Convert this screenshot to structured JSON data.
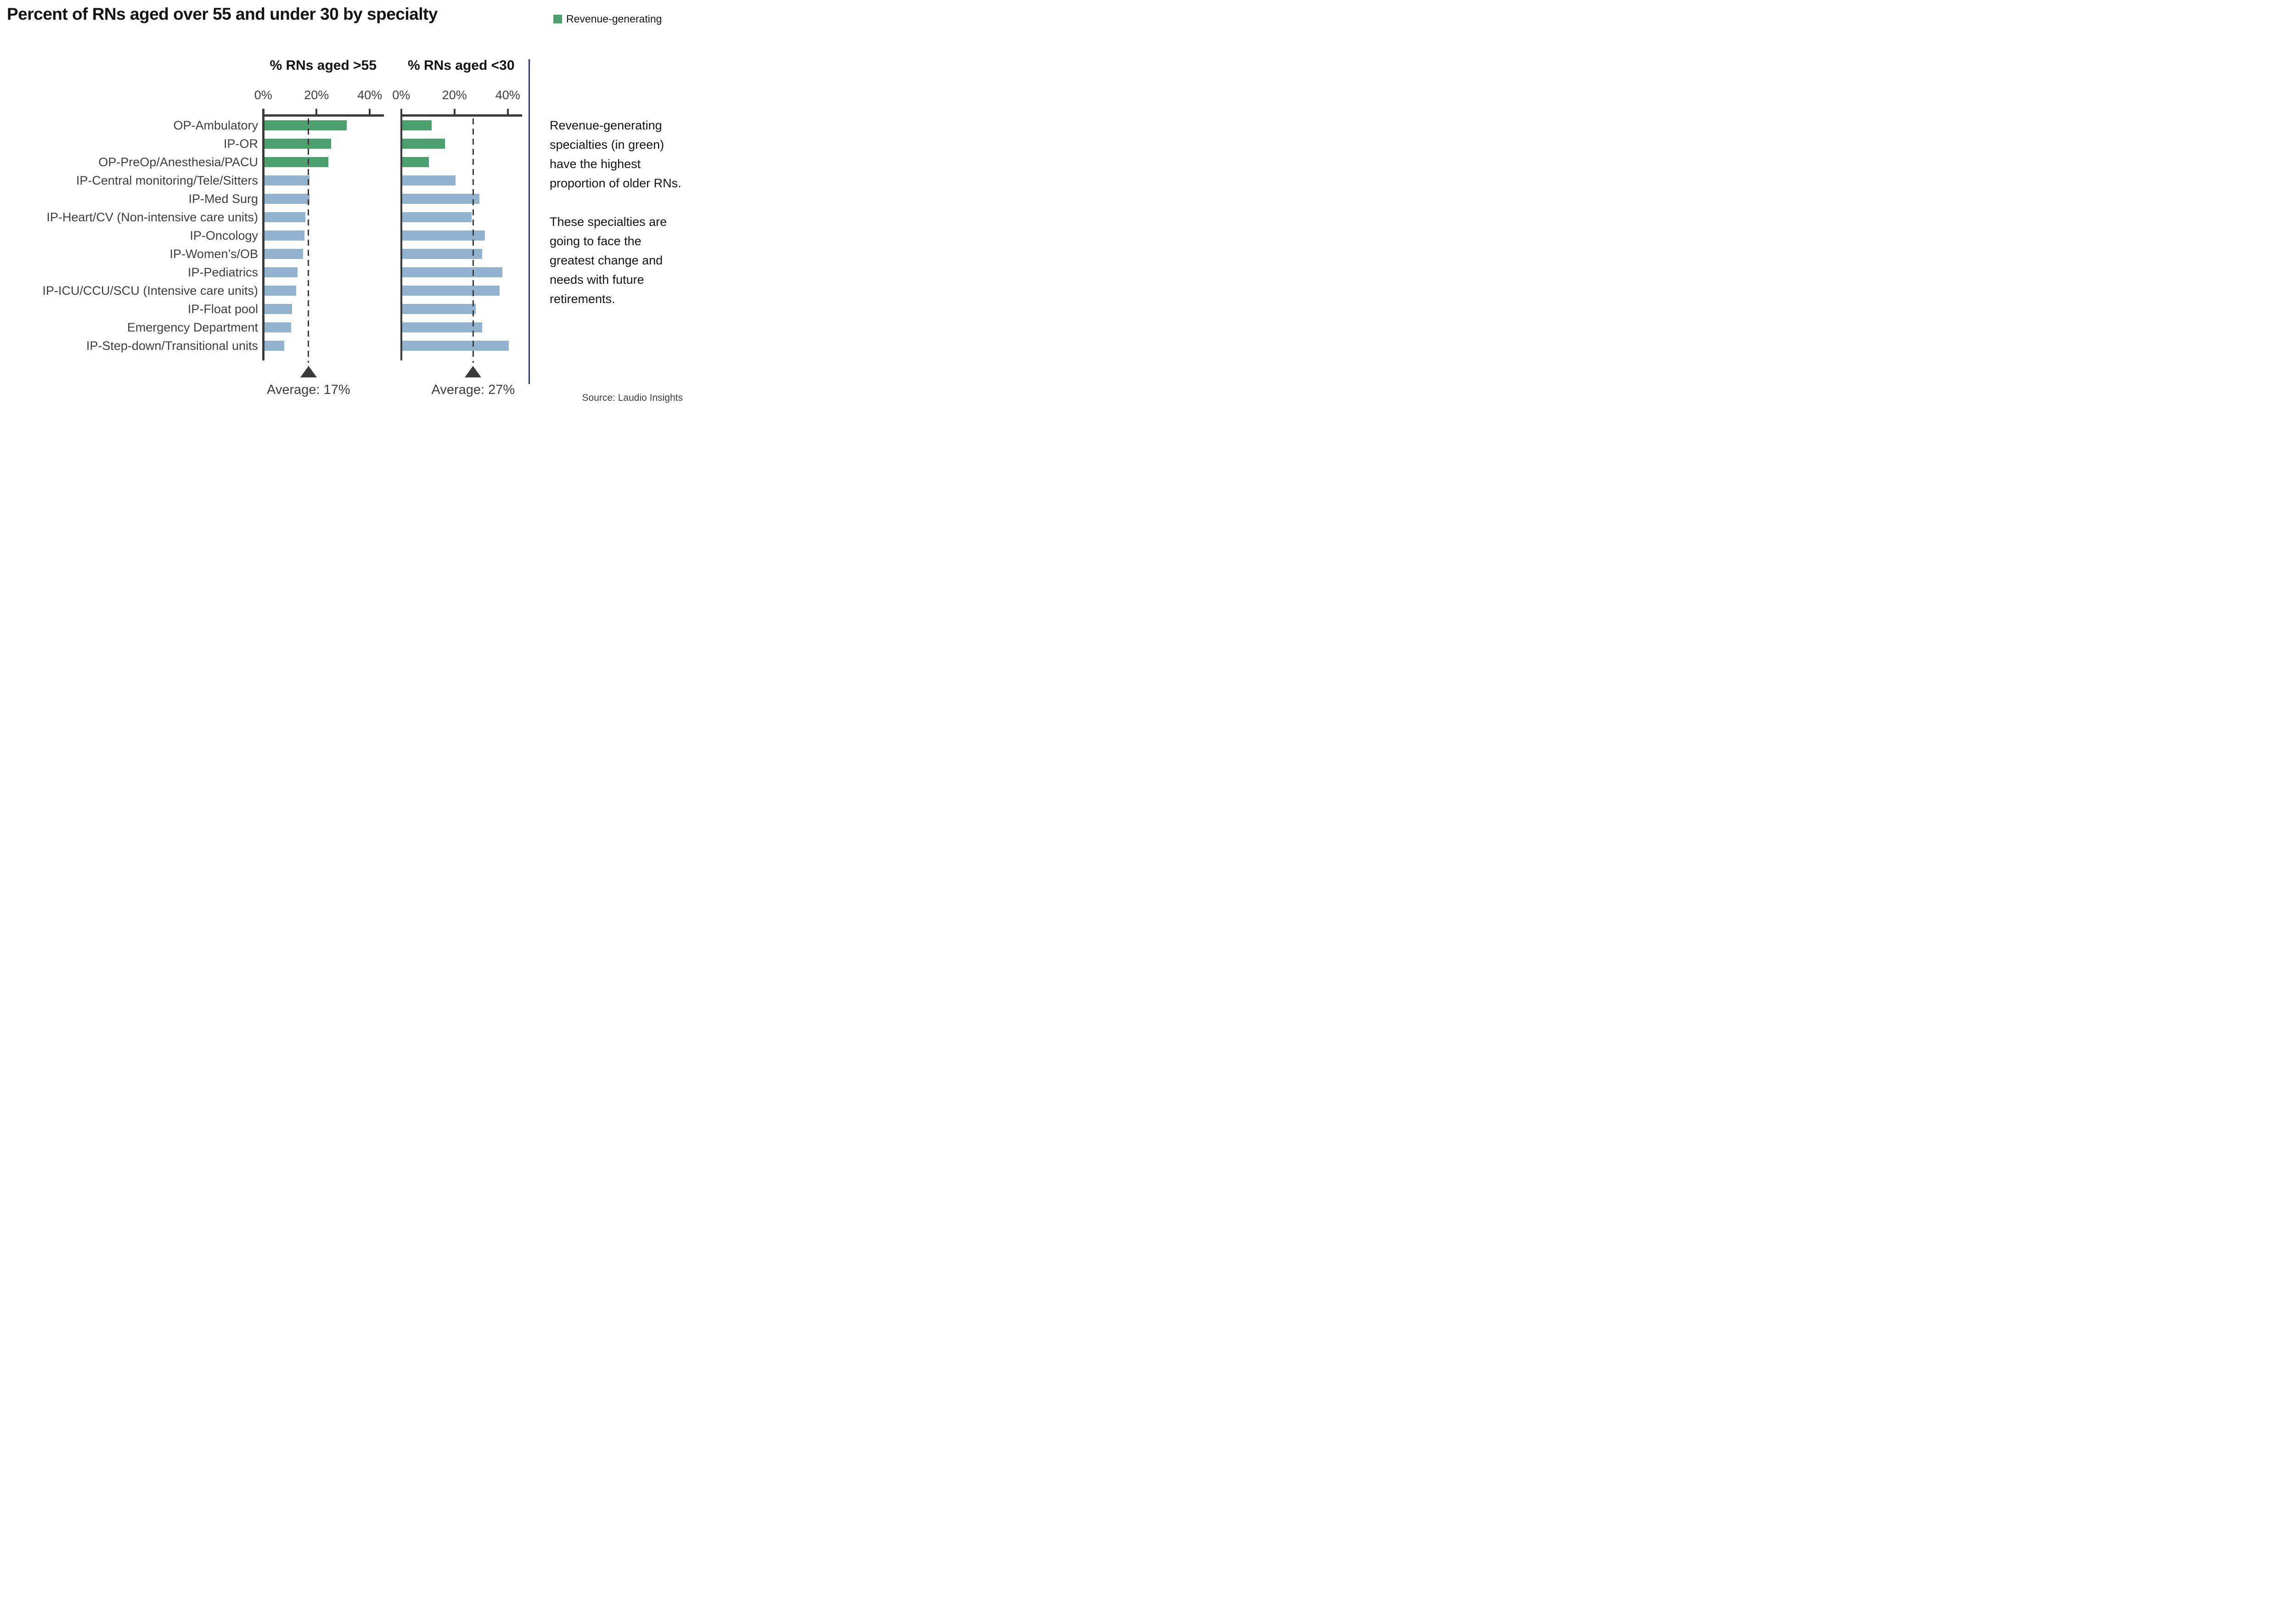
{
  "title": "Percent of RNs aged over 55 and under 30 by specialty",
  "legend": {
    "label": "Revenue-generating"
  },
  "colors": {
    "revenue_green": "#4ba06e",
    "bar_blue": "#92b2ce",
    "axis_dark": "#3a3a3a",
    "divider_blue": "#28338f",
    "text_dark": "#141414",
    "text_gray": "#3d3d3d"
  },
  "chart_data": {
    "type": "bar",
    "orientation": "horizontal",
    "title": "Percent of RNs aged over 55 and under 30 by specialty",
    "categories": [
      "OP-Ambulatory",
      "IP-OR",
      "OP-PreOp/Anesthesia/PACU",
      "IP-Central monitoring/Tele/Sitters",
      "IP-Med Surg",
      "IP-Heart/CV (Non-intensive care units)",
      "IP-Oncology",
      "IP-Women’s/OB",
      "IP-Pediatrics",
      "IP-ICU/CCU/SCU (Intensive care units)",
      "IP-Float pool",
      "Emergency Department",
      "IP-Step-down/Transitional units"
    ],
    "revenue_generating": [
      true,
      true,
      true,
      false,
      false,
      false,
      false,
      false,
      false,
      false,
      false,
      false,
      false
    ],
    "series": [
      {
        "name": "% RNs aged >55",
        "values": [
          31,
          25,
          24,
          17,
          17,
          15.5,
          15,
          14.5,
          12.5,
          12,
          10.5,
          10,
          7.5
        ],
        "average": 17,
        "average_label": "Average: 17%"
      },
      {
        "name": "% RNs aged <30",
        "values": [
          11,
          16,
          10,
          20,
          29,
          26,
          31,
          30,
          37.5,
          36.5,
          27.5,
          30,
          40
        ],
        "average": 27,
        "average_label": "Average: 27%"
      }
    ],
    "x_ticks": {
      "labels": [
        "0%",
        "20%",
        "40%"
      ],
      "values": [
        0,
        20,
        40
      ]
    },
    "xlim": [
      0,
      45
    ],
    "grid": "none",
    "legend_position": "top-right",
    "legend_entries": [
      "Revenue-generating"
    ]
  },
  "annotation": {
    "paragraphs": [
      "Revenue-generating specialties (in green) have the highest proportion of older RNs.",
      "These specialties are going to face the greatest change and needs with future retirements."
    ]
  },
  "source": "Source: Laudio Insights"
}
